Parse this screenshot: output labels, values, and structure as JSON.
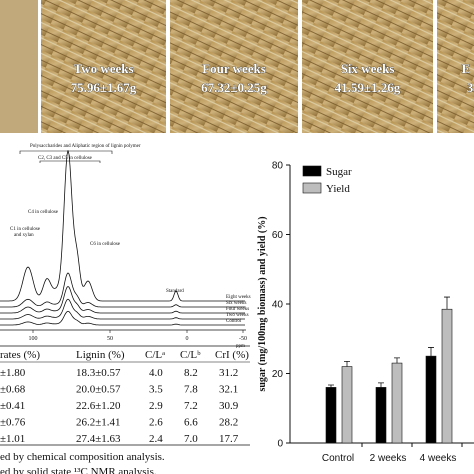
{
  "photos": [
    {
      "label": null,
      "value": null
    },
    {
      "label": "Two weeks",
      "value": "75.96±1.67g"
    },
    {
      "label": "Four weeks",
      "value": "67.32±0.25g"
    },
    {
      "label": "Six weeks",
      "value": "41.59±1.26g"
    },
    {
      "label": "E",
      "value": "3"
    }
  ],
  "nmr": {
    "annotations": [
      "Polysaccharides and Aliphatic region of lignin polymer",
      "C2, C3 and C5 in cellulose",
      "C4 in cellulose",
      "C1 in cellulose",
      "and xylan",
      "C6 in cellulose",
      "Standard"
    ],
    "curves": [
      "Eight weeks",
      "Six weeks",
      "Four weeks",
      "Two weeks",
      "Control"
    ],
    "xticks": [
      "100",
      "50",
      "0",
      "-50"
    ],
    "xlabel": "ppm"
  },
  "table": {
    "header": [
      "rates (%)",
      "Lignin (%)",
      "C/Lᵃ",
      "C/Lᵇ",
      "CrI (%)"
    ],
    "rows": [
      [
        "±1.80",
        "18.3±0.57",
        "4.0",
        "8.2",
        "31.2"
      ],
      [
        "±0.68",
        "20.0±0.57",
        "3.5",
        "7.8",
        "32.1"
      ],
      [
        "±0.41",
        "22.6±1.20",
        "2.9",
        "7.2",
        "30.9"
      ],
      [
        "±0.76",
        "26.2±1.41",
        "2.6",
        "6.6",
        "28.2"
      ],
      [
        "±1.01",
        "27.4±1.63",
        "2.4",
        "7.0",
        "17.7"
      ]
    ],
    "footnotes": [
      "ed by chemical composition analysis.",
      "ed by solid state ¹³C NMR analysis."
    ]
  },
  "chart_data": {
    "type": "bar",
    "ylabel": "sugar (mg/100mg biomass) and yield (%)",
    "categories": [
      "Control",
      "2 weeks",
      "4 weeks"
    ],
    "series": [
      {
        "name": "Sugar",
        "color": "#000000",
        "values": [
          16,
          16,
          25
        ],
        "errors": [
          0.7,
          1.3,
          2.5
        ]
      },
      {
        "name": "Yield",
        "color": "#bdbdbd",
        "values": [
          22,
          23,
          38.5
        ],
        "errors": [
          1.5,
          1.5,
          3.5
        ]
      }
    ],
    "ylim": [
      0,
      80
    ],
    "yticks": [
      0,
      20,
      40,
      60,
      80
    ]
  }
}
